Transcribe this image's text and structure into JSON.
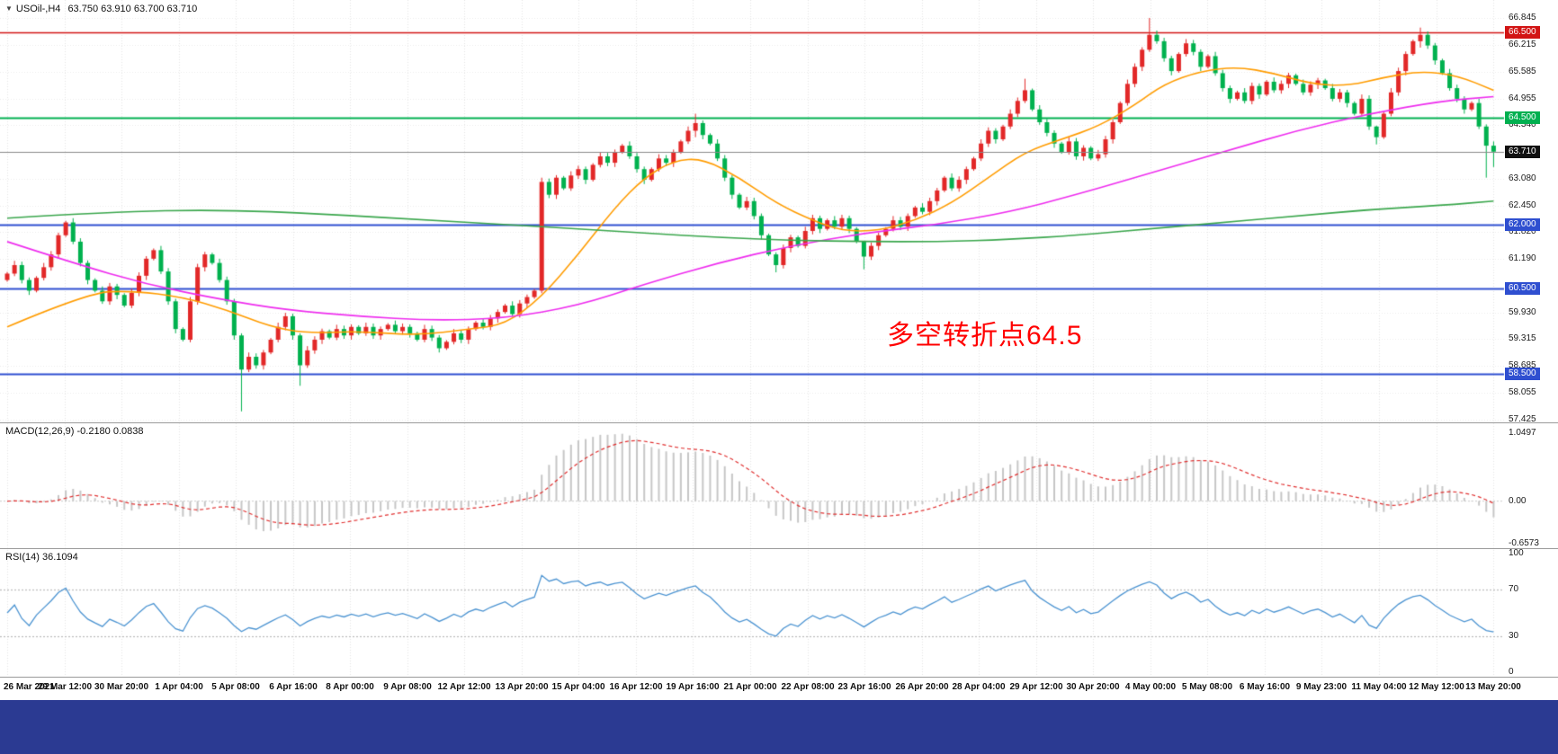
{
  "title_bar": {
    "symbol_period": "USOil-,H4",
    "ohlc": "63.750 63.910 63.700 63.710"
  },
  "annotation": {
    "text": "多空转折点64.5",
    "color": "#ff0000"
  },
  "colors": {
    "bull": "#e22828",
    "bear": "#00b14e",
    "ma_fast": "#ff9c00",
    "ma_mid": "#ee2dee",
    "ma_slow": "#3aa64c",
    "macd_hist": "#c6c6c6",
    "macd_signal": "#e03030",
    "rsi_line": "#4b93d1",
    "grid": "#e4e4e4",
    "grid_h": "#ececec",
    "separator": "#9a9a9a",
    "axis_text": "#1a1a1a",
    "bottom_bar": "#2b3a92",
    "level_blue": "#2f4fd0",
    "level_green": "#00b050",
    "level_red": "#d21414",
    "current_line": "#8a8a8a",
    "current_badge": "#101010"
  },
  "chart_data": {
    "type": "candlestick",
    "symbol": "USOil",
    "timeframe": "H4",
    "current_candle": {
      "open": "63.750",
      "high": "63.910",
      "low": "63.700",
      "close": "63.710"
    },
    "first_open": 60.7,
    "closes": [
      60.85,
      61.05,
      60.7,
      60.45,
      60.75,
      61.0,
      61.3,
      61.75,
      62.05,
      61.6,
      61.1,
      60.7,
      60.45,
      60.2,
      60.55,
      60.35,
      60.1,
      60.4,
      60.8,
      61.2,
      61.4,
      60.9,
      60.2,
      59.55,
      59.3,
      60.2,
      61.0,
      61.3,
      61.1,
      60.7,
      60.2,
      59.4,
      58.6,
      58.9,
      58.7,
      59.0,
      59.3,
      59.6,
      59.85,
      59.4,
      58.7,
      59.05,
      59.3,
      59.5,
      59.35,
      59.55,
      59.4,
      59.6,
      59.45,
      59.6,
      59.4,
      59.55,
      59.65,
      59.5,
      59.6,
      59.45,
      59.3,
      59.55,
      59.35,
      59.1,
      59.25,
      59.45,
      59.3,
      59.55,
      59.7,
      59.6,
      59.8,
      59.95,
      60.1,
      59.9,
      60.15,
      60.3,
      60.45,
      63.0,
      62.7,
      63.1,
      62.85,
      63.15,
      63.3,
      63.05,
      63.4,
      63.6,
      63.45,
      63.7,
      63.85,
      63.6,
      63.3,
      63.05,
      63.3,
      63.55,
      63.45,
      63.7,
      63.95,
      64.2,
      64.38,
      64.1,
      63.9,
      63.55,
      63.1,
      62.7,
      62.4,
      62.55,
      62.2,
      61.75,
      61.3,
      61.05,
      61.45,
      61.7,
      61.5,
      61.85,
      62.15,
      61.9,
      62.1,
      61.95,
      62.15,
      61.9,
      61.6,
      61.25,
      61.5,
      61.75,
      61.9,
      62.1,
      61.95,
      62.2,
      62.4,
      62.3,
      62.55,
      62.8,
      63.1,
      62.85,
      63.05,
      63.3,
      63.55,
      63.9,
      64.2,
      64.0,
      64.3,
      64.6,
      64.9,
      65.15,
      64.7,
      64.4,
      64.15,
      63.9,
      63.7,
      63.95,
      63.6,
      63.8,
      63.55,
      63.65,
      64.0,
      64.4,
      64.85,
      65.3,
      65.7,
      66.1,
      66.45,
      66.3,
      65.9,
      65.6,
      66.0,
      66.25,
      66.05,
      65.7,
      65.95,
      65.55,
      65.2,
      64.95,
      65.1,
      64.9,
      65.25,
      65.05,
      65.35,
      65.15,
      65.3,
      65.5,
      65.3,
      65.1,
      65.28,
      65.38,
      65.2,
      64.95,
      65.1,
      64.85,
      64.6,
      64.95,
      64.3,
      64.05,
      64.6,
      65.1,
      65.6,
      66.0,
      66.3,
      66.45,
      66.2,
      65.85,
      65.55,
      65.2,
      64.95,
      64.7,
      64.85,
      64.3,
      63.85,
      63.71
    ],
    "wicks": {
      "32": [
        59.45,
        57.62
      ],
      "40": [
        59.45,
        58.22
      ],
      "94": [
        64.6,
        64.05
      ],
      "105": [
        61.35,
        60.88
      ],
      "117": [
        61.62,
        60.95
      ],
      "139": [
        65.42,
        64.85
      ],
      "156": [
        66.845,
        66.05
      ],
      "187": [
        64.32,
        63.88
      ],
      "193": [
        66.62,
        66.15
      ],
      "202": [
        64.35,
        63.1
      ],
      "203": [
        63.95,
        63.35
      ]
    },
    "ma_lines": [
      {
        "name": "ma-fast-orange",
        "color_key": "ma_fast",
        "points": [
          [
            0,
            59.6
          ],
          [
            11,
            60.4
          ],
          [
            17,
            60.45
          ],
          [
            24,
            60.3
          ],
          [
            30,
            60.0
          ],
          [
            36,
            59.6
          ],
          [
            41,
            59.45
          ],
          [
            48,
            59.5
          ],
          [
            56,
            59.4
          ],
          [
            63,
            59.55
          ],
          [
            68,
            59.65
          ],
          [
            73,
            60.3
          ],
          [
            78,
            61.3
          ],
          [
            83,
            62.4
          ],
          [
            87,
            63.1
          ],
          [
            91,
            63.5
          ],
          [
            95,
            63.55
          ],
          [
            100,
            63.1
          ],
          [
            105,
            62.5
          ],
          [
            110,
            62.1
          ],
          [
            114,
            61.85
          ],
          [
            119,
            61.85
          ],
          [
            124,
            62.1
          ],
          [
            129,
            62.5
          ],
          [
            134,
            63.1
          ],
          [
            139,
            63.7
          ],
          [
            144,
            64.0
          ],
          [
            149,
            64.3
          ],
          [
            154,
            64.8
          ],
          [
            158,
            65.3
          ],
          [
            163,
            65.6
          ],
          [
            168,
            65.7
          ],
          [
            173,
            65.55
          ],
          [
            178,
            65.3
          ],
          [
            183,
            65.25
          ],
          [
            188,
            65.45
          ],
          [
            193,
            65.6
          ],
          [
            198,
            65.5
          ],
          [
            203,
            65.15
          ]
        ]
      },
      {
        "name": "ma-mid-magenta",
        "color_key": "ma_mid",
        "points": [
          [
            0,
            61.6
          ],
          [
            9,
            61.1
          ],
          [
            19,
            60.6
          ],
          [
            29,
            60.25
          ],
          [
            38,
            60.0
          ],
          [
            48,
            59.85
          ],
          [
            58,
            59.75
          ],
          [
            68,
            59.8
          ],
          [
            78,
            60.1
          ],
          [
            87,
            60.6
          ],
          [
            97,
            61.1
          ],
          [
            107,
            61.5
          ],
          [
            117,
            61.8
          ],
          [
            127,
            62.0
          ],
          [
            137,
            62.3
          ],
          [
            146,
            62.7
          ],
          [
            156,
            63.2
          ],
          [
            166,
            63.7
          ],
          [
            176,
            64.2
          ],
          [
            186,
            64.6
          ],
          [
            196,
            64.9
          ],
          [
            203,
            65.0
          ]
        ]
      },
      {
        "name": "ma-slow-green",
        "color_key": "ma_slow",
        "points": [
          [
            0,
            62.15
          ],
          [
            14,
            62.3
          ],
          [
            29,
            62.35
          ],
          [
            43,
            62.25
          ],
          [
            58,
            62.1
          ],
          [
            68,
            62.0
          ],
          [
            78,
            61.9
          ],
          [
            87,
            61.8
          ],
          [
            97,
            61.7
          ],
          [
            107,
            61.63
          ],
          [
            117,
            61.6
          ],
          [
            127,
            61.6
          ],
          [
            137,
            61.65
          ],
          [
            146,
            61.75
          ],
          [
            156,
            61.9
          ],
          [
            166,
            62.05
          ],
          [
            176,
            62.2
          ],
          [
            186,
            62.35
          ],
          [
            196,
            62.45
          ],
          [
            203,
            62.55
          ]
        ]
      }
    ],
    "levels": [
      {
        "value": 66.5,
        "text": "66.500",
        "color_key": "level_red",
        "line_width": 1.4
      },
      {
        "value": 64.5,
        "text": "64.500",
        "color_key": "level_green",
        "line_width": 2
      },
      {
        "value": 62.0,
        "text": "62.000",
        "color_key": "level_blue",
        "line_width": 2
      },
      {
        "value": 60.5,
        "text": "60.500",
        "color_key": "level_blue",
        "line_width": 2
      },
      {
        "value": 58.5,
        "text": "58.500",
        "color_key": "level_blue",
        "line_width": 2
      }
    ],
    "current_price_line": {
      "value": 63.71,
      "text": "63.710"
    },
    "y_axis": {
      "plain_labels": [
        {
          "text": "66.845",
          "value": 66.845
        },
        {
          "text": "66.215",
          "value": 66.215
        },
        {
          "text": "65.585",
          "value": 65.585
        },
        {
          "text": "64.955",
          "value": 64.955
        },
        {
          "text": "64.340",
          "value": 64.34
        },
        {
          "text": "63.080",
          "value": 63.08
        },
        {
          "text": "62.450",
          "value": 62.45
        },
        {
          "text": "61.820",
          "value": 61.82
        },
        {
          "text": "61.190",
          "value": 61.19
        },
        {
          "text": "59.930",
          "value": 59.93
        },
        {
          "text": "59.315",
          "value": 59.315
        },
        {
          "text": "58.685",
          "value": 58.685
        },
        {
          "text": "58.055",
          "value": 58.055
        },
        {
          "text": "57.425",
          "value": 57.425
        }
      ]
    },
    "x_labels": [
      "26 Mar 2021",
      "29 Mar 12:00",
      "30 Mar 20:00",
      "1 Apr 04:00",
      "5 Apr 08:00",
      "6 Apr 16:00",
      "8 Apr 00:00",
      "9 Apr 08:00",
      "12 Apr 12:00",
      "13 Apr 20:00",
      "15 Apr 04:00",
      "16 Apr 12:00",
      "19 Apr 16:00",
      "21 Apr 00:00",
      "22 Apr 08:00",
      "23 Apr 16:00",
      "26 Apr 20:00",
      "28 Apr 04:00",
      "29 Apr 12:00",
      "30 Apr 20:00",
      "4 May 00:00",
      "5 May 08:00",
      "6 May 16:00",
      "9 May 23:00",
      "11 May 04:00",
      "12 May 12:00",
      "13 May 20:00"
    ],
    "indicators": {
      "macd": {
        "name": "MACD(12,26,9)",
        "values_text": "-0.2180 0.0838",
        "params": [
          12,
          26,
          9
        ],
        "axis_labels": [
          {
            "text": "1.0497",
            "value": 1.0497
          },
          {
            "text": "0.00",
            "value": 0
          },
          {
            "text": "-0.6573",
            "value": -0.6573
          }
        ]
      },
      "rsi": {
        "name": "RSI(14)",
        "value_text": "36.1094",
        "period": 14,
        "levels": [
          70,
          30
        ],
        "axis_labels": [
          {
            "text": "100",
            "value": 100
          },
          {
            "text": "70",
            "value": 70
          },
          {
            "text": "30",
            "value": 30
          },
          {
            "text": "0",
            "value": 0
          }
        ]
      }
    }
  }
}
